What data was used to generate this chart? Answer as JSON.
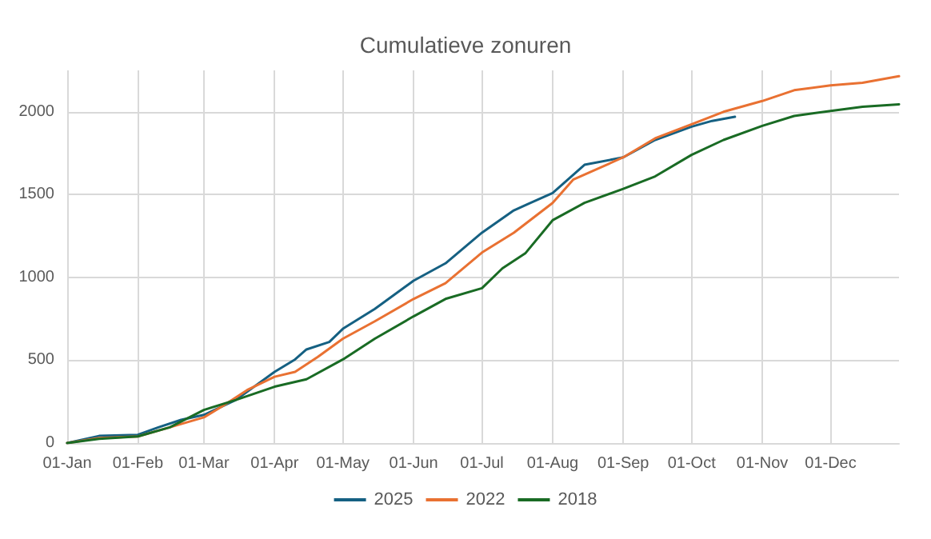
{
  "chart_data": {
    "type": "line",
    "title": "Cumulatieve zonuren",
    "xlim": [
      "--01-01",
      "--12-31"
    ],
    "xticks": [
      {
        "value": "--01-01",
        "label": "01-Jan"
      },
      {
        "value": "--02-01",
        "label": "01-Feb"
      },
      {
        "value": "--03-01",
        "label": "01-Mar"
      },
      {
        "value": "--04-01",
        "label": "01-Apr"
      },
      {
        "value": "--05-01",
        "label": "01-May"
      },
      {
        "value": "--06-01",
        "label": "01-Jun"
      },
      {
        "value": "--07-01",
        "label": "01-Jul"
      },
      {
        "value": "--08-01",
        "label": "01-Aug"
      },
      {
        "value": "--09-01",
        "label": "01-Sep"
      },
      {
        "value": "--10-01",
        "label": "01-Oct"
      },
      {
        "value": "--11-01",
        "label": "01-Nov"
      },
      {
        "value": "--12-01",
        "label": "01-Dec"
      }
    ],
    "ylim": [
      0,
      2250
    ],
    "yticks": [
      0,
      500,
      1000,
      1500,
      2000
    ],
    "grid": true,
    "legend": "bottom",
    "marker": "none",
    "line_style": "solid",
    "series": [
      {
        "name": "2025",
        "color": "#156082",
        "x": [
          "--01-01",
          "--01-15",
          "--02-01",
          "--02-10",
          "--02-20",
          "--03-01",
          "--03-15",
          "--04-01",
          "--04-10",
          "--04-15",
          "--04-25",
          "--05-01",
          "--05-15",
          "--06-01",
          "--06-15",
          "--07-01",
          "--07-15",
          "--08-01",
          "--08-15",
          "--09-01",
          "--09-15",
          "--10-01",
          "--10-10",
          "--10-20"
        ],
        "values": [
          0,
          43,
          50,
          95,
          140,
          170,
          260,
          430,
          505,
          565,
          610,
          690,
          810,
          980,
          1085,
          1270,
          1405,
          1510,
          1680,
          1725,
          1830,
          1910,
          1945,
          1970
        ]
      },
      {
        "name": "2022",
        "color": "#e97132",
        "x": [
          "--01-01",
          "--01-15",
          "--02-01",
          "--02-15",
          "--03-01",
          "--03-10",
          "--03-20",
          "--04-01",
          "--04-10",
          "--04-20",
          "--05-01",
          "--05-15",
          "--06-01",
          "--06-15",
          "--07-01",
          "--07-15",
          "--08-01",
          "--08-10",
          "--09-01",
          "--09-15",
          "--10-01",
          "--10-15",
          "--11-01",
          "--11-15",
          "--12-01",
          "--12-15",
          "--12-31"
        ],
        "values": [
          0,
          30,
          40,
          95,
          155,
          230,
          320,
          400,
          430,
          520,
          630,
          735,
          870,
          965,
          1150,
          1270,
          1450,
          1590,
          1725,
          1840,
          1925,
          2000,
          2065,
          2130,
          2160,
          2175,
          2215
        ]
      },
      {
        "name": "2018",
        "color": "#196b24",
        "x": [
          "--01-01",
          "--01-15",
          "--02-01",
          "--02-15",
          "--03-01",
          "--03-15",
          "--04-01",
          "--04-15",
          "--05-01",
          "--05-15",
          "--06-01",
          "--06-15",
          "--07-01",
          "--07-10",
          "--07-20",
          "--08-01",
          "--08-15",
          "--09-01",
          "--09-15",
          "--10-01",
          "--10-15",
          "--11-01",
          "--11-15",
          "--12-01",
          "--12-15",
          "--12-31"
        ],
        "values": [
          0,
          25,
          40,
          95,
          200,
          260,
          340,
          385,
          505,
          630,
          765,
          870,
          935,
          1055,
          1145,
          1345,
          1450,
          1535,
          1610,
          1740,
          1830,
          1915,
          1975,
          2005,
          2030,
          2045
        ]
      }
    ]
  }
}
